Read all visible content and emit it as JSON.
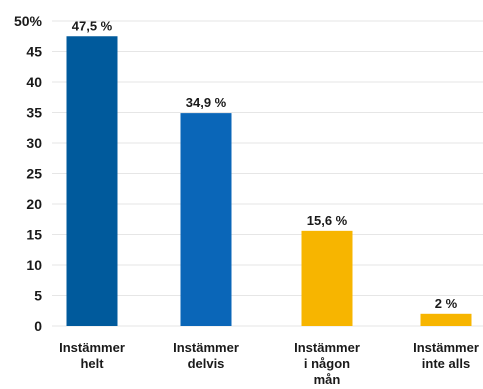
{
  "chart_data": {
    "type": "bar",
    "categories": [
      [
        "Instämmer",
        "helt"
      ],
      [
        "Instämmer",
        "delvis"
      ],
      [
        "Instämmer",
        "i någon",
        "mån"
      ],
      [
        "Instämmer",
        "inte alls"
      ]
    ],
    "values": [
      47.5,
      34.9,
      15.6,
      2
    ],
    "data_labels": [
      "47,5 %",
      "34,9 %",
      "15,6 %",
      "2 %"
    ],
    "bar_colors": [
      "#005a9c",
      "#0a66b8",
      "#f7b500",
      "#f7b500"
    ],
    "yticks": [
      "0",
      "5",
      "10",
      "15",
      "20",
      "25",
      "30",
      "35",
      "40",
      "45",
      "50%"
    ],
    "ylim": [
      0,
      50
    ],
    "grid": true,
    "title": "",
    "xlabel": "",
    "ylabel": ""
  }
}
